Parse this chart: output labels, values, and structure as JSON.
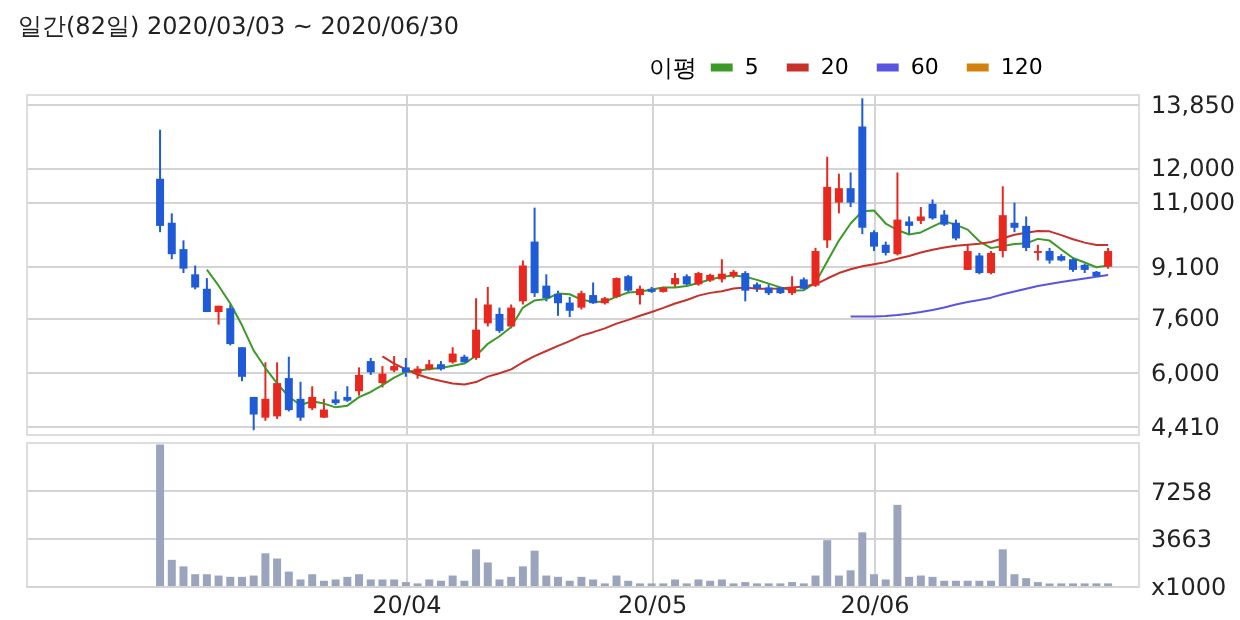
{
  "chart_data": [
    {
      "type": "candlestick",
      "title": "일간(82일) 2020/03/03 ~ 2020/06/30",
      "legend_title": "이평",
      "legend": "top",
      "grid": true,
      "tick_labels": "y",
      "categories": [
        null,
        null,
        null,
        null,
        null,
        null,
        null,
        null,
        null,
        null,
        null,
        null,
        null,
        null,
        null,
        null,
        null,
        null,
        null,
        null,
        null,
        null,
        null,
        null,
        null,
        null,
        null,
        null,
        null,
        null,
        null,
        null,
        null,
        null,
        null,
        null,
        null,
        null,
        null,
        null,
        null,
        null,
        null,
        null,
        null,
        null,
        null,
        null,
        null,
        null,
        null,
        null,
        null,
        null,
        null,
        null,
        null,
        null,
        null,
        null,
        null,
        null,
        null,
        null,
        null,
        null,
        null,
        null,
        null,
        null,
        null,
        null,
        null,
        null,
        null,
        null,
        null,
        null,
        null,
        null,
        null,
        null
      ],
      "ylim": [
        4190,
        14140
      ],
      "yticks": [
        {
          "value": 13850,
          "label": "13,850"
        },
        {
          "value": 12000,
          "label": "12,000"
        },
        {
          "value": 11000,
          "label": "11,000"
        },
        {
          "value": 9100,
          "label": "9,100"
        },
        {
          "value": 7600,
          "label": "7,600"
        },
        {
          "value": 6000,
          "label": "6,000"
        },
        {
          "value": 4410,
          "label": "4,410"
        }
      ],
      "ohlc": [
        [
          11660,
          13095,
          10096,
          10280
        ],
        [
          10372,
          10648,
          9305,
          9452
        ],
        [
          9600,
          9857,
          8900,
          9029
        ],
        [
          8863,
          9121,
          8422,
          8477
        ],
        [
          8440,
          8753,
          7759,
          7759
        ],
        [
          7759,
          7943,
          7391,
          7943
        ],
        [
          7870,
          7980,
          6784,
          6821
        ],
        [
          6729,
          6729,
          5735,
          5864
        ],
        [
          5275,
          5275,
          4300,
          4760
        ],
        [
          4668,
          6287,
          4576,
          5220
        ],
        [
          4705,
          6287,
          4631,
          5680
        ],
        [
          5827,
          6453,
          4852,
          4889
        ],
        [
          5220,
          5717,
          4576,
          4668
        ],
        [
          4944,
          5588,
          4889,
          5275
        ],
        [
          4668,
          5220,
          4668,
          4907
        ],
        [
          5202,
          5441,
          5036,
          5091
        ],
        [
          5275,
          5588,
          5130,
          5165
        ],
        [
          5441,
          6140,
          5312,
          5919
        ],
        [
          6324,
          6416,
          5919,
          5993
        ],
        [
          5680,
          6177,
          5551,
          5956
        ],
        [
          6048,
          6471,
          6000,
          6177
        ],
        [
          6140,
          6416,
          5864,
          5993
        ],
        [
          5956,
          6177,
          5809,
          6103
        ],
        [
          6085,
          6361,
          6050,
          6232
        ],
        [
          6232,
          6324,
          6048,
          6085
        ],
        [
          6287,
          6729,
          6250,
          6545
        ],
        [
          6453,
          6508,
          6287,
          6287
        ],
        [
          6416,
          8164,
          6361,
          7244
        ],
        [
          7428,
          8495,
          7336,
          7980
        ],
        [
          7704,
          7888,
          7152,
          7207
        ],
        [
          7336,
          7980,
          7281,
          7888
        ],
        [
          8072,
          9268,
          7980,
          9121
        ],
        [
          9820,
          10814,
          8201,
          8311
        ],
        [
          8532,
          8863,
          8072,
          8164
        ],
        [
          8293,
          8384,
          7649,
          8017
        ],
        [
          8035,
          8201,
          7612,
          7796
        ],
        [
          7888,
          8384,
          7833,
          8311
        ],
        [
          8256,
          8624,
          8000,
          8017
        ],
        [
          8017,
          8200,
          7980,
          8164
        ],
        [
          8201,
          8771,
          8164,
          8753
        ],
        [
          8808,
          8845,
          8348,
          8384
        ],
        [
          8256,
          8532,
          7980,
          8440
        ],
        [
          8440,
          8495,
          8320,
          8348
        ],
        [
          8348,
          8500,
          8330,
          8477
        ],
        [
          8569,
          8900,
          8495,
          8753
        ],
        [
          8808,
          8863,
          8532,
          8569
        ],
        [
          8569,
          8937,
          8532,
          8900
        ],
        [
          8679,
          8880,
          8640,
          8845
        ],
        [
          8716,
          9305,
          8624,
          8882
        ],
        [
          8808,
          8992,
          8750,
          8937
        ],
        [
          8900,
          8955,
          8072,
          8385
        ],
        [
          8569,
          8624,
          8348,
          8440
        ],
        [
          8477,
          8569,
          8256,
          8311
        ],
        [
          8477,
          8500,
          8290,
          8311
        ],
        [
          8311,
          8808,
          8256,
          8477
        ],
        [
          8716,
          8771,
          8384,
          8440
        ],
        [
          8532,
          9636,
          8495,
          9544
        ],
        [
          9857,
          12304,
          9636,
          11421
        ],
        [
          10961,
          11807,
          10648,
          11384
        ],
        [
          11384,
          11844,
          10832,
          10961
        ],
        [
          13187,
          14015,
          10041,
          10225
        ],
        [
          10096,
          10151,
          9544,
          9673
        ],
        [
          9728,
          9820,
          9415,
          9489
        ],
        [
          9452,
          11844,
          9415,
          10464
        ],
        [
          10409,
          10556,
          10041,
          10280
        ],
        [
          10427,
          10832,
          10335,
          10556
        ],
        [
          10924,
          11053,
          10464,
          10501
        ],
        [
          10611,
          10740,
          10280,
          10317
        ],
        [
          10372,
          10464,
          9857,
          9912
        ],
        [
          8992,
          9728,
          8992,
          9544
        ],
        [
          9415,
          9489,
          8863,
          8900
        ],
        [
          8900,
          9544,
          8863,
          9489
        ],
        [
          9544,
          11439,
          9360,
          10593
        ],
        [
          10372,
          10961,
          10096,
          10225
        ],
        [
          10280,
          10556,
          9544,
          9636
        ],
        [
          9489,
          9728,
          9268,
          9544
        ],
        [
          9544,
          9636,
          9176,
          9268
        ],
        [
          9397,
          9452,
          9240,
          9268
        ],
        [
          9305,
          9360,
          8937,
          8992
        ],
        [
          9139,
          9176,
          8900,
          8992
        ],
        [
          8937,
          8960,
          8790,
          8808
        ],
        [
          9084,
          9636,
          9029,
          9544
        ]
      ],
      "colors": [
        "#1f5bd6",
        "#1f5bd6",
        "#1f5bd6",
        "#1f5bd6",
        "#1f5bd6",
        "#e8281e",
        "#1f5bd6",
        "#1f5bd6",
        "#1f5bd6",
        "#e8281e",
        "#e8281e",
        "#1f5bd6",
        "#1f5bd6",
        "#e8281e",
        "#e8281e",
        "#1f5bd6",
        "#1f5bd6",
        "#e8281e",
        "#1f5bd6",
        "#e8281e",
        "#e8281e",
        "#1f5bd6",
        "#e8281e",
        "#e8281e",
        "#1f5bd6",
        "#e8281e",
        "#1f5bd6",
        "#e8281e",
        "#e8281e",
        "#1f5bd6",
        "#e8281e",
        "#e8281e",
        "#1f5bd6",
        "#1f5bd6",
        "#1f5bd6",
        "#1f5bd6",
        "#e8281e",
        "#1f5bd6",
        "#e8281e",
        "#e8281e",
        "#1f5bd6",
        "#e8281e",
        "#1f5bd6",
        "#e8281e",
        "#e8281e",
        "#1f5bd6",
        "#e8281e",
        "#e8281e",
        "#e8281e",
        "#e8281e",
        "#1f5bd6",
        "#1f5bd6",
        "#1f5bd6",
        "#1f5bd6",
        "#e8281e",
        "#1f5bd6",
        "#e8281e",
        "#e8281e",
        "#e8281e",
        "#1f5bd6",
        "#1f5bd6",
        "#1f5bd6",
        "#1f5bd6",
        "#e8281e",
        "#1f5bd6",
        "#e8281e",
        "#1f5bd6",
        "#1f5bd6",
        "#1f5bd6",
        "#e8281e",
        "#1f5bd6",
        "#e8281e",
        "#e8281e",
        "#1f5bd6",
        "#1f5bd6",
        "#e8281e",
        "#1f5bd6",
        "#1f5bd6",
        "#1f5bd6",
        "#1f5bd6",
        "#1f5bd6",
        "#e8281e"
      ],
      "series": [
        {
          "name": "5",
          "color": "#3c9a28",
          "type": "line",
          "values": [
            null,
            null,
            null,
            null,
            9000,
            8530,
            8010,
            7370,
            6630,
            6120,
            5670,
            5280,
            5040,
            5150,
            5080,
            4970,
            5020,
            5270,
            5420,
            5620,
            5840,
            6010,
            6040,
            6090,
            6120,
            6190,
            6250,
            6480,
            6830,
            7050,
            7320,
            7890,
            8100,
            8140,
            8300,
            8280,
            8120,
            8060,
            8060,
            8210,
            8330,
            8350,
            8420,
            8480,
            8480,
            8520,
            8610,
            8710,
            8790,
            8830,
            8790,
            8700,
            8590,
            8480,
            8380,
            8400,
            8620,
            9240,
            9850,
            10350,
            10710,
            10730,
            10350,
            10160,
            10030,
            10090,
            10260,
            10420,
            10310,
            10170,
            9830,
            9630,
            9690,
            9750,
            9770,
            9900,
            9850,
            9590,
            9340,
            9210,
            9070,
            9120
          ]
        },
        {
          "name": "20",
          "color": "#c8302a",
          "type": "line",
          "values": [
            null,
            null,
            null,
            null,
            null,
            null,
            null,
            null,
            null,
            null,
            null,
            null,
            null,
            null,
            null,
            null,
            null,
            null,
            null,
            6460,
            6250,
            6080,
            5930,
            5820,
            5740,
            5670,
            5640,
            5710,
            5870,
            5970,
            6080,
            6290,
            6470,
            6620,
            6770,
            6910,
            7070,
            7170,
            7280,
            7420,
            7530,
            7650,
            7760,
            7880,
            8010,
            8110,
            8240,
            8320,
            8370,
            8450,
            8480,
            8440,
            8440,
            8450,
            8480,
            8510,
            8570,
            8740,
            8900,
            9010,
            9100,
            9160,
            9220,
            9320,
            9400,
            9500,
            9580,
            9650,
            9700,
            9730,
            9760,
            9810,
            9920,
            10020,
            10080,
            10130,
            10120,
            10010,
            9890,
            9790,
            9720,
            9720
          ]
        },
        {
          "name": "60",
          "color": "#5a55e0",
          "type": "line",
          "values": [
            null,
            null,
            null,
            null,
            null,
            null,
            null,
            null,
            null,
            null,
            null,
            null,
            null,
            null,
            null,
            null,
            null,
            null,
            null,
            null,
            null,
            null,
            null,
            null,
            null,
            null,
            null,
            null,
            null,
            null,
            null,
            null,
            null,
            null,
            null,
            null,
            null,
            null,
            null,
            null,
            null,
            null,
            null,
            null,
            null,
            null,
            null,
            null,
            null,
            null,
            null,
            null,
            null,
            null,
            null,
            null,
            null,
            null,
            null,
            7630,
            7630,
            7630,
            7640,
            7670,
            7710,
            7760,
            7820,
            7890,
            7980,
            8050,
            8110,
            8180,
            8280,
            8360,
            8440,
            8520,
            8580,
            8640,
            8690,
            8740,
            8790,
            8840
          ]
        },
        {
          "name": "120",
          "color": "#d4800f",
          "type": "line",
          "values": [
            null,
            null,
            null,
            null,
            null,
            null,
            null,
            null,
            null,
            null,
            null,
            null,
            null,
            null,
            null,
            null,
            null,
            null,
            null,
            null,
            null,
            null,
            null,
            null,
            null,
            null,
            null,
            null,
            null,
            null,
            null,
            null,
            null,
            null,
            null,
            null,
            null,
            null,
            null,
            null,
            null,
            null,
            null,
            null,
            null,
            null,
            null,
            null,
            null,
            null,
            null,
            null,
            null,
            null,
            null,
            null,
            null,
            null,
            null,
            null,
            null,
            null,
            null,
            null,
            null,
            null,
            null,
            null,
            null,
            null,
            null,
            null,
            null,
            null,
            null,
            null,
            null,
            null,
            null,
            null,
            null,
            null
          ]
        }
      ]
    },
    {
      "type": "bar",
      "color": "#9aa5bd",
      "grid": true,
      "categories": [
        null,
        null,
        null,
        null,
        null,
        null,
        null,
        null,
        null,
        null,
        null,
        null,
        null,
        null,
        null,
        null,
        null,
        null,
        null,
        null,
        null,
        "20/04",
        null,
        null,
        null,
        null,
        null,
        null,
        null,
        null,
        null,
        null,
        null,
        null,
        null,
        null,
        null,
        null,
        null,
        null,
        null,
        null,
        "20/05",
        null,
        null,
        null,
        null,
        null,
        null,
        null,
        null,
        null,
        null,
        null,
        null,
        null,
        null,
        null,
        null,
        null,
        null,
        "20/06",
        null,
        null,
        null,
        null,
        null,
        null,
        null,
        null,
        null,
        null,
        null,
        null,
        null,
        null,
        null,
        null,
        null,
        null,
        null,
        null
      ],
      "ylim": [
        0,
        11000
      ],
      "yticks": [
        {
          "value": 0,
          "label": "x1000"
        },
        3663,
        7258
      ],
      "values": [
        10800,
        2000,
        1500,
        900,
        900,
        800,
        700,
        700,
        800,
        2500,
        2100,
        1100,
        500,
        900,
        400,
        500,
        700,
        900,
        500,
        500,
        500,
        300,
        200,
        500,
        400,
        800,
        400,
        2800,
        1800,
        500,
        700,
        1500,
        2700,
        800,
        700,
        400,
        700,
        500,
        200,
        800,
        400,
        200,
        200,
        200,
        500,
        200,
        500,
        400,
        500,
        200,
        300,
        200,
        200,
        200,
        300,
        200,
        800,
        3500,
        800,
        1200,
        4100,
        900,
        500,
        6200,
        700,
        800,
        700,
        400,
        400,
        400,
        400,
        400,
        2800,
        900,
        600,
        300,
        200,
        200,
        200,
        200,
        200,
        200
      ]
    }
  ]
}
